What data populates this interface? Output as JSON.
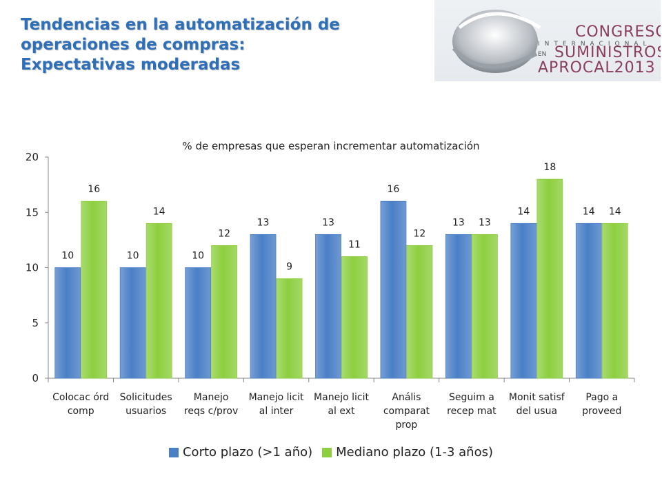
{
  "slide": {
    "title_lines": [
      "Tendencias en la automatización de",
      "operaciones de compras:",
      "Expectativas moderadas"
    ]
  },
  "logo": {
    "line1": "CONGRESO",
    "line2": "INTERNACIONAL",
    "line3_prefix": "EN",
    "line3": "SUMINISTROS",
    "line4": "APROCAL2013"
  },
  "colors": {
    "title": "#2e6fb8",
    "series_blue": "#4a7fc6",
    "series_green": "#8dcf3f",
    "axis": "#888888"
  },
  "chart_data": {
    "type": "bar",
    "title": "% de empresas que esperan incrementar automatización",
    "categories": [
      [
        "Colocac  órd",
        "comp"
      ],
      [
        "Solicitudes",
        "usuarios"
      ],
      [
        "Manejo",
        "reqs c/prov"
      ],
      [
        "Manejo licit",
        "al inter"
      ],
      [
        "Manejo licit",
        "al ext"
      ],
      [
        "Anális",
        "comparat",
        "prop"
      ],
      [
        "Seguim a",
        "recep mat"
      ],
      [
        "Monit satisf",
        "del usua"
      ],
      [
        "Pago a",
        "proveed"
      ]
    ],
    "series": [
      {
        "name": "Corto plazo (>1 año)",
        "values": [
          10,
          10,
          10,
          13,
          13,
          16,
          13,
          14,
          14
        ]
      },
      {
        "name": "Mediano plazo (1-3 años)",
        "values": [
          16,
          14,
          12,
          9,
          11,
          12,
          13,
          18,
          14
        ]
      }
    ],
    "ylim": [
      0,
      20
    ],
    "yticks": [
      0,
      5,
      10,
      15,
      20
    ],
    "grid": false,
    "legend": "bottom",
    "data_labels": true
  }
}
